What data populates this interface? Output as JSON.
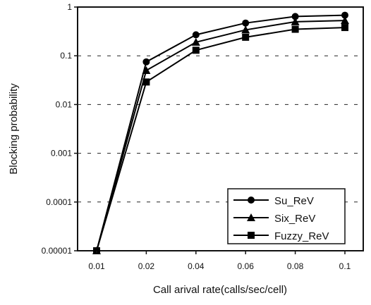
{
  "chart_data": {
    "type": "line",
    "title": "",
    "xlabel": "Call arival rate(calls/sec/cell)",
    "ylabel": "Blocking probability",
    "y_scale": "log",
    "ylim": [
      1e-05,
      1
    ],
    "grid": "horizontal dashed",
    "legend_position": "bottom-right",
    "categories": [
      "0.01",
      "0.02",
      "0.04",
      "0.06",
      "0.08",
      "0.1"
    ],
    "y_tick_labels": [
      "0.00001",
      "0.0001",
      "0.001",
      "0.01",
      "0.1",
      "1"
    ],
    "series": [
      {
        "name": "Su_ReV",
        "marker": "circle",
        "color": "#000000",
        "values": [
          1e-05,
          0.075,
          0.27,
          0.47,
          0.64,
          0.68
        ]
      },
      {
        "name": "Six_ReV",
        "marker": "triangle",
        "color": "#000000",
        "values": [
          1e-05,
          0.05,
          0.19,
          0.34,
          0.5,
          0.53
        ]
      },
      {
        "name": "Fuzzy_ReV",
        "marker": "square",
        "color": "#000000",
        "values": [
          1e-05,
          0.029,
          0.13,
          0.24,
          0.35,
          0.38
        ]
      }
    ]
  }
}
